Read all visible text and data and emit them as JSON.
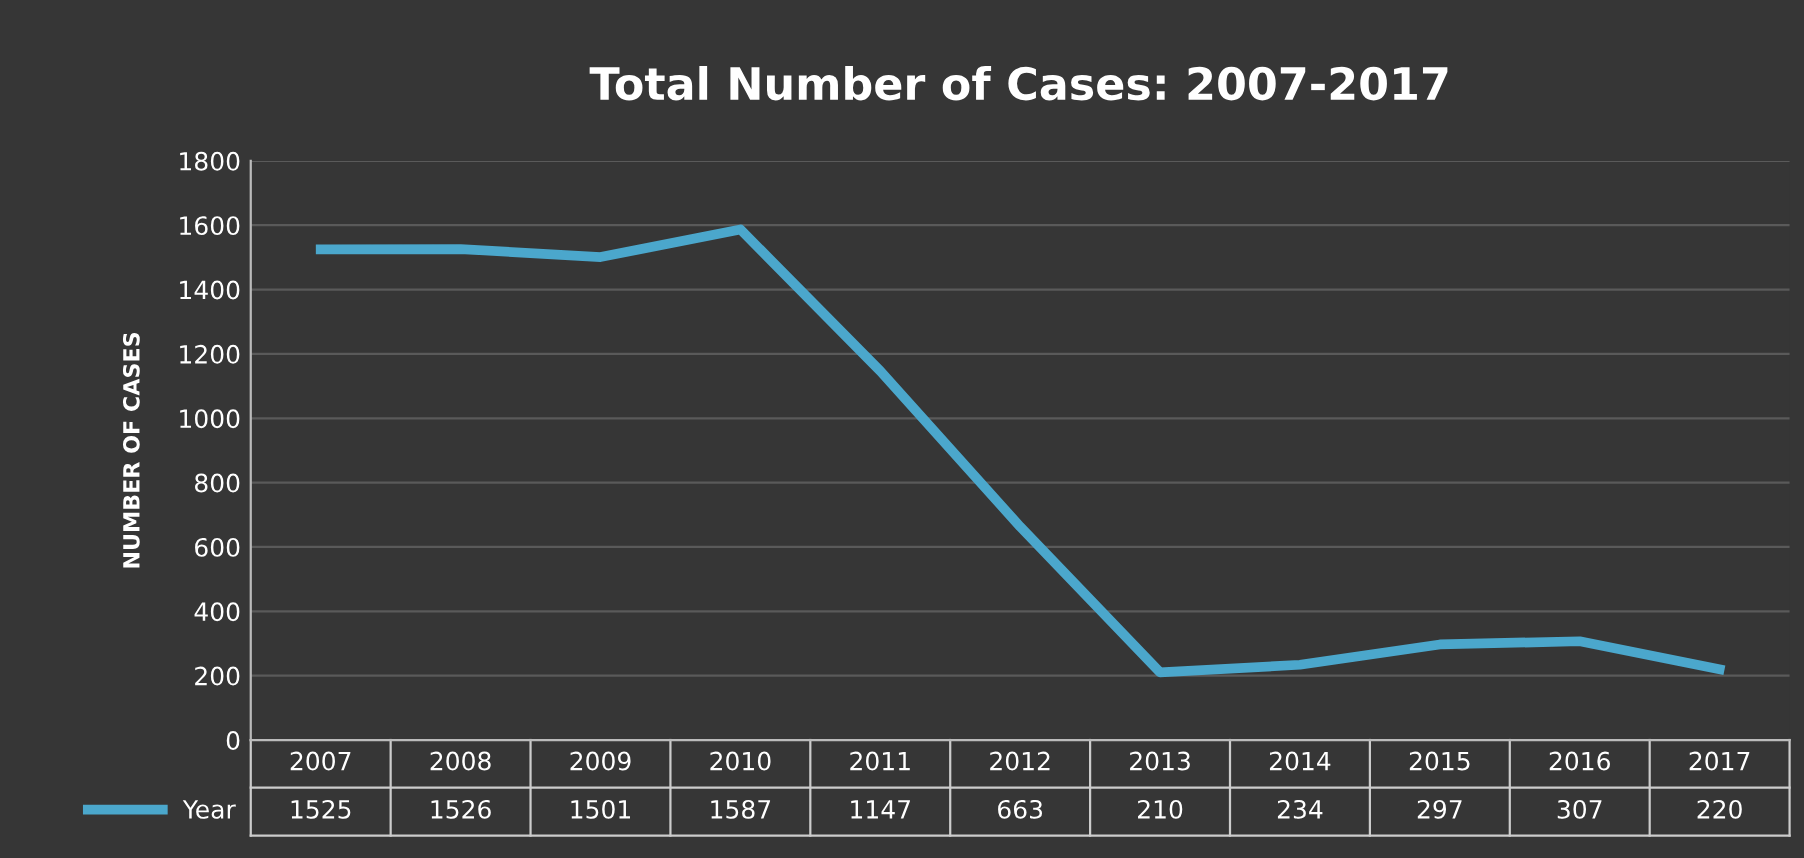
{
  "chart_data": {
    "type": "line",
    "title": "Total Number of Cases: 2007-2017",
    "ylabel": "NUMBER OF CASES",
    "categories": [
      "2007",
      "2008",
      "2009",
      "2010",
      "2011",
      "2012",
      "2013",
      "2014",
      "2015",
      "2016",
      "2017"
    ],
    "series": [
      {
        "name": "Year",
        "color": "#4ba7cc",
        "values": [
          1525,
          1526,
          1501,
          1587,
          1147,
          663,
          210,
          234,
          297,
          307,
          220
        ]
      }
    ],
    "ylim": [
      0,
      1800
    ],
    "yticks": [
      0,
      200,
      400,
      600,
      800,
      1000,
      1200,
      1400,
      1600,
      1800
    ],
    "grid": "y",
    "legend": "bottom left",
    "data_labels": true,
    "marker": "none",
    "line_style": "solid"
  }
}
